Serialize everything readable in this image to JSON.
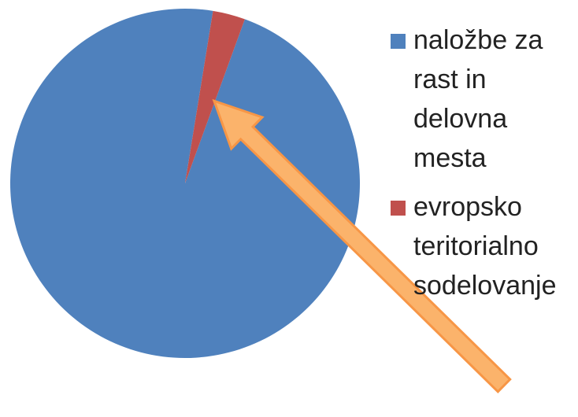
{
  "chart_data": {
    "type": "pie",
    "categories": [
      "naložbe za rast in delovna mesta",
      "evropsko teritorialno sodelovanje"
    ],
    "values": [
      97,
      3
    ],
    "colors": [
      "#4f81bd",
      "#c0504d"
    ],
    "start_angle": 20,
    "legend": "right"
  }
}
